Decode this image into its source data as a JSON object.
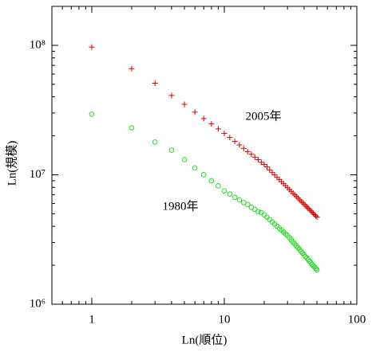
{
  "chart_data": {
    "type": "scatter",
    "x_label": "Ln(順位)",
    "y_label": "Ln(規模)",
    "x": [
      1,
      2,
      3,
      4,
      5,
      6,
      7,
      8,
      9,
      10,
      11,
      12,
      13,
      14,
      15,
      16,
      17,
      18,
      19,
      20,
      21,
      22,
      23,
      24,
      25,
      26,
      27,
      28,
      29,
      30,
      31,
      32,
      33,
      34,
      35,
      36,
      37,
      38,
      39,
      40,
      41,
      42,
      43,
      44,
      45,
      46,
      47,
      48,
      49,
      50
    ],
    "series": [
      {
        "name": "2005年",
        "color": "#d40000",
        "marker": "plus",
        "values": [
          97000000.0,
          66000000.0,
          51000000.0,
          41000000.0,
          35000000.0,
          30500000.0,
          27200000.0,
          24700000.0,
          22600000.0,
          20900000.0,
          19400000.0,
          18100000.0,
          17000000.0,
          16000000.0,
          15100000.0,
          14400000.0,
          13700000.0,
          13100000.0,
          12500000.0,
          12000000.0,
          11500000.0,
          10900000.0,
          10400000.0,
          9980000.0,
          9570000.0,
          9200000.0,
          8850000.0,
          8530000.0,
          8240000.0,
          7940000.0,
          7690000.0,
          7450000.0,
          7190000.0,
          7000000.0,
          6790000.0,
          6610000.0,
          6410000.0,
          6240000.0,
          6080000.0,
          5930000.0,
          5770000.0,
          5640000.0,
          5510000.0,
          5380000.0,
          5260000.0,
          5130000.0,
          5020000.0,
          4920000.0,
          4820000.0,
          4720000.0
        ]
      },
      {
        "name": "1980年",
        "color": "#22dd22",
        "marker": "circle",
        "values": [
          29400000.0,
          23100000.0,
          17900000.0,
          15500000.0,
          13100000.0,
          11300000.0,
          10000000.0,
          9000000.0,
          8200000.0,
          7500000.0,
          7100000.0,
          6700000.0,
          6400000.0,
          6100000.0,
          5900000.0,
          5600000.0,
          5400000.0,
          5200000.0,
          5100000.0,
          4900000.0,
          4700000.0,
          4510000.0,
          4320000.0,
          4160000.0,
          4010000.0,
          3860000.0,
          3740000.0,
          3610000.0,
          3500000.0,
          3400000.0,
          3270000.0,
          3140000.0,
          3030000.0,
          2920000.0,
          2820000.0,
          2730000.0,
          2640000.0,
          2560000.0,
          2480000.0,
          2400000.0,
          2330000.0,
          2270000.0,
          2210000.0,
          2150000.0,
          2090000.0,
          2030000.0,
          1980000.0,
          1940000.0,
          1890000.0,
          1840000.0
        ]
      }
    ],
    "xlim": [
      0.5,
      100
    ],
    "ylim": [
      1000000,
      200000000
    ],
    "xticks": [
      1,
      10,
      100
    ],
    "yticks": [
      {
        "value": 1000000,
        "label": "10⁶"
      },
      {
        "value": 10000000,
        "label": "10⁷"
      },
      {
        "value": 100000000,
        "label": "10⁸"
      }
    ],
    "log_x": true,
    "log_y": true,
    "grid": false
  }
}
